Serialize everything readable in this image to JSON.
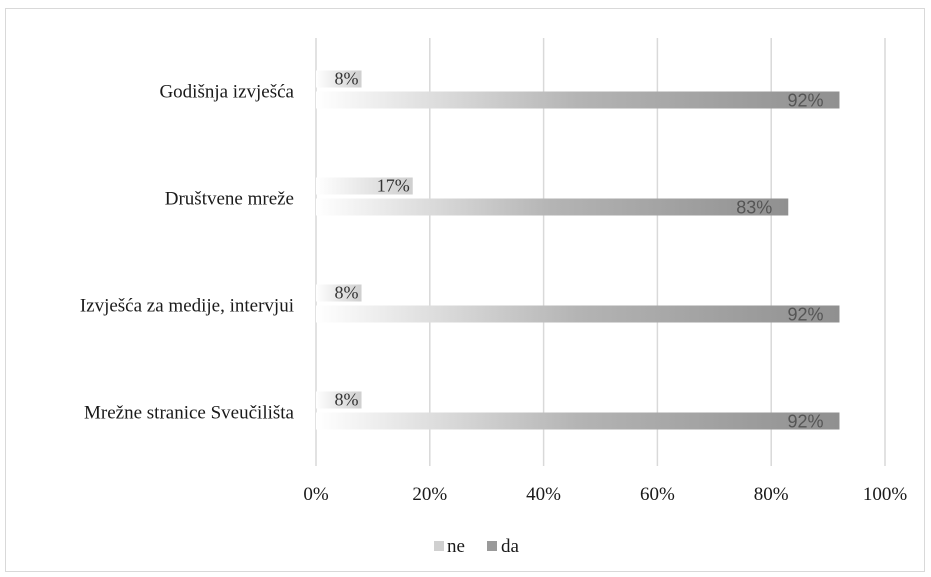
{
  "chart_data": {
    "type": "bar",
    "orientation": "horizontal",
    "categories": [
      "Godišnja izvješća",
      "Društvene mreže",
      "Izvješća za medije, intervjui",
      "Mrežne stranice Sveučilišta"
    ],
    "series": [
      {
        "name": "ne",
        "values": [
          8,
          17,
          8,
          8
        ],
        "labels": [
          "8%",
          "17%",
          "8%",
          "8%"
        ],
        "color": "#d0d0d0"
      },
      {
        "name": "da",
        "values": [
          92,
          83,
          92,
          92
        ],
        "labels": [
          "92%",
          "83%",
          "92%",
          "92%"
        ],
        "color": "#9a9a9a"
      }
    ],
    "xlim": [
      0,
      100
    ],
    "xticks": [
      "0%",
      "20%",
      "40%",
      "60%",
      "80%",
      "100%"
    ],
    "grid": true,
    "legend_position": "bottom"
  },
  "legend": {
    "items": [
      "ne",
      "da"
    ]
  }
}
